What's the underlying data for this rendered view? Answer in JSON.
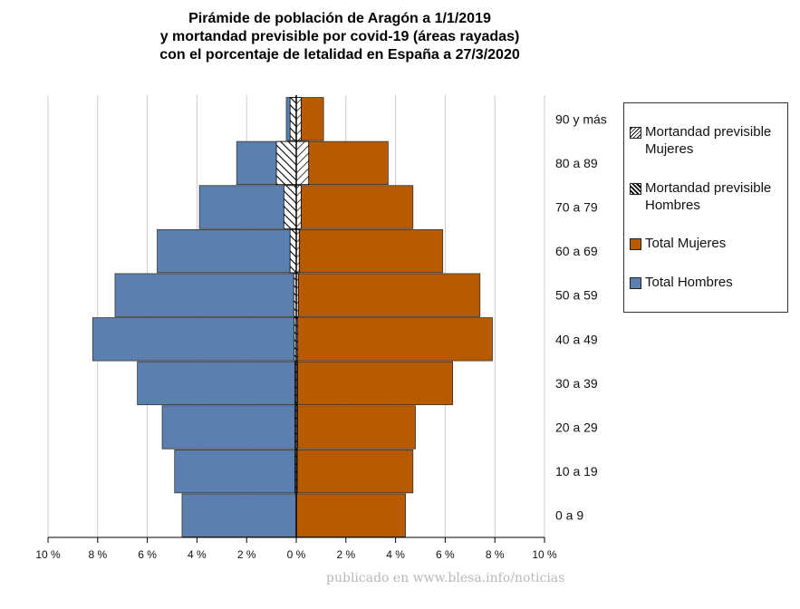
{
  "title_lines": [
    "Pirámide de población de Aragón a 1/1/2019",
    "y mortandad previsible por covid-19 (áreas rayadas)",
    "con el porcentaje de letalidad en España a 27/3/2020"
  ],
  "footer": "publicado en www.blesa.info/noticias",
  "colors": {
    "hombres": "#5b7faf",
    "mujeres": "#b85a00",
    "grid": "#cccccc",
    "hatch": "#000000"
  },
  "chart_data": {
    "type": "bar",
    "orientation": "horizontal",
    "categories": [
      "0 a 9",
      "10 a 19",
      "20 a 29",
      "30 a 39",
      "40 a 49",
      "50 a 59",
      "60 a 69",
      "70 a 79",
      "80 a 89",
      "90 y más"
    ],
    "x_ticks": [
      -10,
      -8,
      -6,
      -4,
      -2,
      0,
      2,
      4,
      6,
      8,
      10
    ],
    "x_tick_labels": [
      "10 %",
      "8 %",
      "6 %",
      "4 %",
      "2 %",
      "0 %",
      "2 %",
      "4 %",
      "6 %",
      "8 %",
      "10 %"
    ],
    "xlim": [
      -10,
      10
    ],
    "grid": true,
    "legend_position": "right",
    "series": [
      {
        "name": "Total Hombres",
        "values": [
          4.6,
          4.9,
          5.4,
          6.4,
          8.2,
          7.3,
          5.6,
          3.9,
          2.4,
          0.4
        ]
      },
      {
        "name": "Total Mujeres",
        "values": [
          4.4,
          4.7,
          4.8,
          6.3,
          7.9,
          7.4,
          5.9,
          4.7,
          3.7,
          1.1
        ]
      },
      {
        "name": "Mortandad previsible Hombres",
        "values": [
          0.0,
          0.05,
          0.05,
          0.05,
          0.08,
          0.1,
          0.25,
          0.5,
          0.8,
          0.25
        ]
      },
      {
        "name": "Mortandad previsible Mujeres",
        "values": [
          0.0,
          0.04,
          0.05,
          0.05,
          0.06,
          0.08,
          0.12,
          0.2,
          0.5,
          0.2
        ]
      }
    ]
  },
  "legend": [
    {
      "label": "Mortandad previsible Mujeres",
      "style": "hatch-back"
    },
    {
      "label": "Mortandad previsible Hombres",
      "style": "hatch-forward"
    },
    {
      "label": "Total Mujeres",
      "style": "mujeres"
    },
    {
      "label": "Total Hombres",
      "style": "hombres"
    }
  ]
}
